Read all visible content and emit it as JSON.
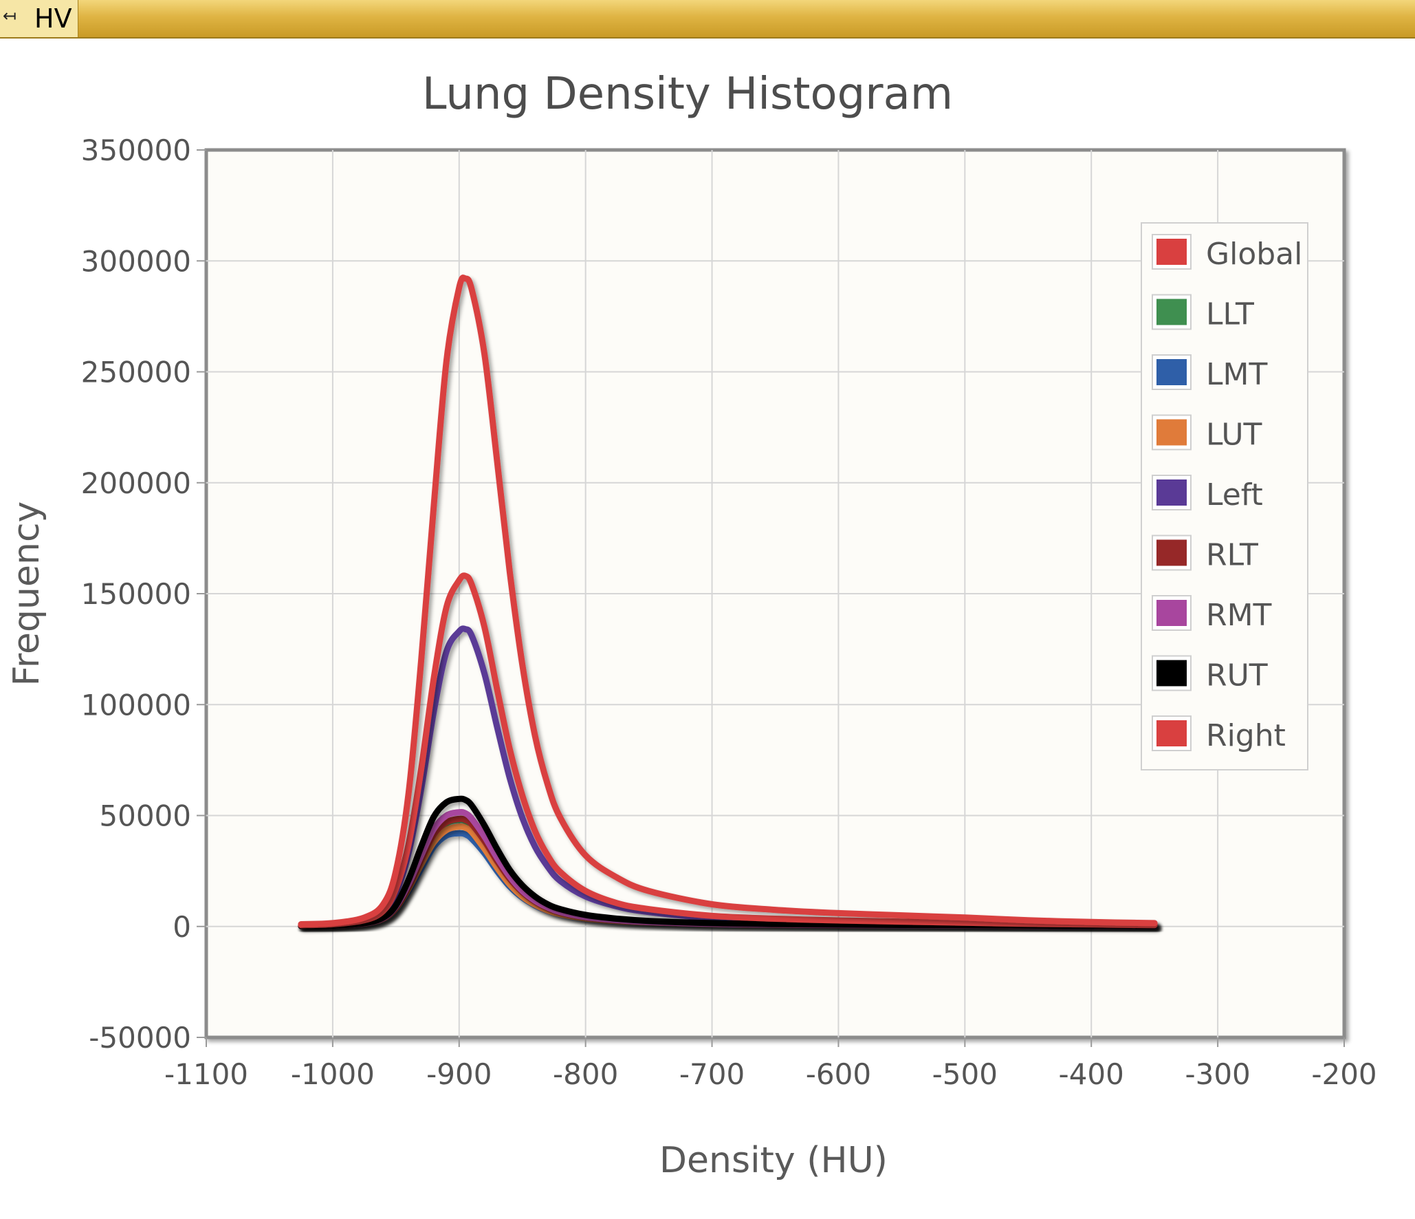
{
  "window": {
    "title": "HV",
    "pin_icon": "pin-icon"
  },
  "chart_data": {
    "type": "line",
    "title": "Lung Density Histogram",
    "xlabel": "Density (HU)",
    "ylabel": "Frequency",
    "xlim": [
      -1100,
      -200
    ],
    "ylim": [
      -50000,
      350000
    ],
    "xticks": [
      "-1100",
      "-1000",
      "-900",
      "-800",
      "-700",
      "-600",
      "-500",
      "-400",
      "-300",
      "-200"
    ],
    "yticks": [
      "-50000",
      "0",
      "50000",
      "100000",
      "150000",
      "200000",
      "250000",
      "300000",
      "350000"
    ],
    "grid": true,
    "legend_position": "top-right",
    "x": [
      -1025,
      -1000,
      -975,
      -960,
      -950,
      -940,
      -930,
      -920,
      -910,
      -900,
      -895,
      -890,
      -880,
      -870,
      -860,
      -850,
      -840,
      -830,
      -820,
      -800,
      -775,
      -750,
      -700,
      -650,
      -600,
      -550,
      -500,
      -450,
      -400,
      -350
    ],
    "series": [
      {
        "name": "Global",
        "color": "#d94040",
        "values": [
          1000,
          1500,
          4000,
          10000,
          25000,
          60000,
          120000,
          190000,
          255000,
          288000,
          292000,
          287000,
          258000,
          210000,
          160000,
          118000,
          86000,
          64000,
          49000,
          32000,
          22000,
          16000,
          10000,
          7500,
          6000,
          5000,
          4000,
          2800,
          2000,
          1500
        ]
      },
      {
        "name": "LLT",
        "color": "#3f8f50",
        "values": [
          200,
          400,
          1300,
          3500,
          8000,
          17000,
          29000,
          40000,
          46500,
          48000,
          47500,
          45500,
          38000,
          29000,
          21000,
          15500,
          11200,
          8300,
          6400,
          4200,
          2800,
          2000,
          1200,
          900,
          700,
          600,
          500,
          350,
          250,
          150
        ]
      },
      {
        "name": "LMT",
        "color": "#2f5fa8",
        "values": [
          200,
          400,
          1200,
          3200,
          7500,
          16000,
          26000,
          36000,
          41000,
          42000,
          41500,
          39500,
          33000,
          25000,
          18000,
          13000,
          9500,
          7000,
          5400,
          3500,
          2300,
          1700,
          1000,
          750,
          600,
          500,
          400,
          300,
          200,
          150
        ]
      },
      {
        "name": "LUT",
        "color": "#e07b3a",
        "values": [
          200,
          400,
          1300,
          3400,
          8000,
          17000,
          28000,
          38000,
          43500,
          45000,
          44500,
          42500,
          35000,
          26500,
          19000,
          13500,
          9800,
          7200,
          5500,
          3600,
          2400,
          1800,
          1100,
          800,
          650,
          550,
          450,
          320,
          220,
          150
        ]
      },
      {
        "name": "Left",
        "color": "#5a3a96",
        "values": [
          500,
          900,
          2500,
          6500,
          15000,
          33000,
          62000,
          97000,
          124000,
          133000,
          134000,
          131000,
          114000,
          90000,
          67000,
          49000,
          36000,
          27000,
          20500,
          13500,
          9000,
          6500,
          3800,
          2800,
          2100,
          1700,
          1300,
          900,
          650,
          450
        ]
      },
      {
        "name": "RLT",
        "color": "#962828",
        "values": [
          200,
          400,
          1400,
          3600,
          8500,
          18000,
          30000,
          41500,
          47000,
          48500,
          48000,
          46000,
          38500,
          29500,
          21500,
          15500,
          11200,
          8300,
          6300,
          4100,
          2700,
          1950,
          1150,
          850,
          680,
          560,
          470,
          330,
          230,
          150
        ]
      },
      {
        "name": "RMT",
        "color": "#a8469e",
        "values": [
          200,
          400,
          1400,
          3800,
          9000,
          19000,
          32000,
          44000,
          50000,
          51500,
          51000,
          48500,
          40500,
          31000,
          22500,
          16000,
          11600,
          8600,
          6500,
          4200,
          2800,
          2000,
          1200,
          900,
          700,
          580,
          480,
          340,
          240,
          150
        ]
      },
      {
        "name": "RUT",
        "color": "#000000",
        "values": [
          200,
          400,
          1500,
          4000,
          9500,
          21000,
          36000,
          49500,
          56000,
          57500,
          57000,
          54500,
          45500,
          35000,
          25500,
          18500,
          13500,
          10000,
          7800,
          5200,
          3500,
          2500,
          1500,
          1100,
          850,
          700,
          580,
          420,
          300,
          200
        ]
      },
      {
        "name": "Right",
        "color": "#d94040",
        "values": [
          600,
          1000,
          2800,
          7000,
          17000,
          37000,
          71000,
          112000,
          144000,
          156000,
          158000,
          154000,
          135000,
          107000,
          80000,
          59000,
          43000,
          32000,
          24500,
          16000,
          10500,
          7800,
          4800,
          3500,
          2700,
          2200,
          1700,
          1200,
          900,
          600
        ]
      }
    ]
  }
}
